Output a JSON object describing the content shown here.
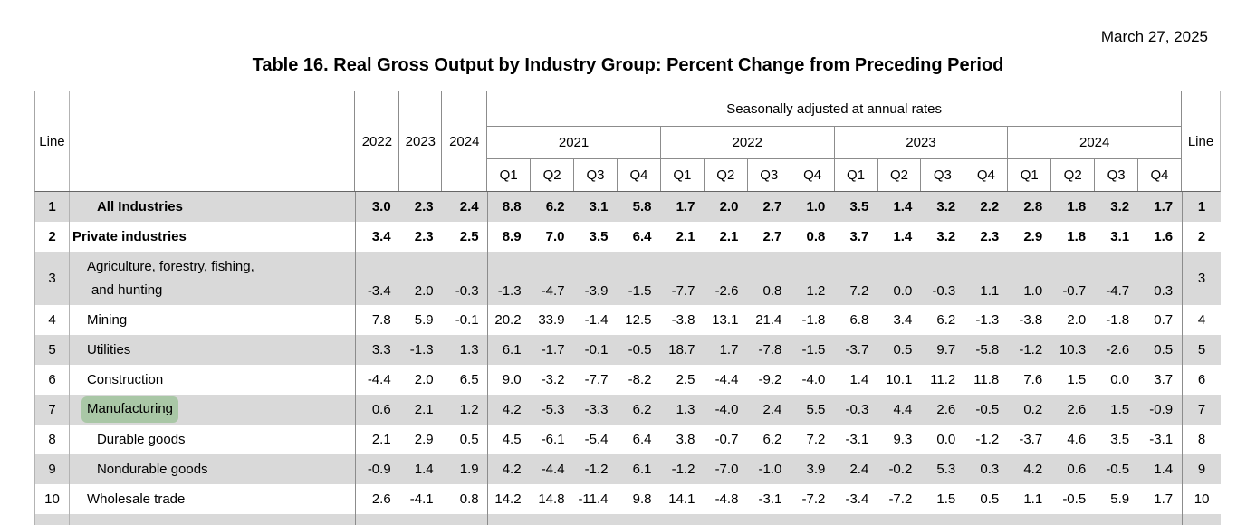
{
  "page": {
    "date": "March 27, 2025",
    "title": "Table 16. Real Gross Output by Industry Group: Percent Change from Preceding Period"
  },
  "colors": {
    "row_stripe": "#d9d9d9",
    "search_highlight": "#a9c7a6",
    "grid_line": "#8c8c8c"
  },
  "table": {
    "line_header": "Line",
    "annual_years": [
      "2022",
      "2023",
      "2024"
    ],
    "seasonal_header": "Seasonally adjusted at annual rates",
    "quarter_years": [
      "2021",
      "2022",
      "2023",
      "2024"
    ],
    "quarter_labels": [
      "Q1",
      "Q2",
      "Q3",
      "Q4"
    ],
    "rows": [
      {
        "line": "1",
        "name": "All Industries",
        "indent": 2,
        "bold": true,
        "highlight": false,
        "annual": [
          "3.0",
          "2.3",
          "2.4"
        ],
        "quarters": [
          "8.8",
          "6.2",
          "3.1",
          "5.8",
          "1.7",
          "2.0",
          "2.7",
          "1.0",
          "3.5",
          "1.4",
          "3.2",
          "2.2",
          "2.8",
          "1.8",
          "3.2",
          "1.7"
        ]
      },
      {
        "line": "2",
        "name": "Private industries",
        "indent": 0,
        "bold": true,
        "highlight": false,
        "annual": [
          "3.4",
          "2.3",
          "2.5"
        ],
        "quarters": [
          "8.9",
          "7.0",
          "3.5",
          "6.4",
          "2.1",
          "2.1",
          "2.7",
          "0.8",
          "3.7",
          "1.4",
          "3.2",
          "2.3",
          "2.9",
          "1.8",
          "3.1",
          "1.6"
        ]
      },
      {
        "line": "3",
        "name": "Agriculture, forestry, fishing, and hunting",
        "name_lines": [
          "Agriculture, forestry, fishing,",
          "and hunting"
        ],
        "indent": 1,
        "bold": false,
        "highlight": false,
        "annual": [
          "-3.4",
          "2.0",
          "-0.3"
        ],
        "quarters": [
          "-1.3",
          "-4.7",
          "-3.9",
          "-1.5",
          "-7.7",
          "-2.6",
          "0.8",
          "1.2",
          "7.2",
          "0.0",
          "-0.3",
          "1.1",
          "1.0",
          "-0.7",
          "-4.7",
          "0.3"
        ]
      },
      {
        "line": "4",
        "name": "Mining",
        "indent": 1,
        "bold": false,
        "highlight": false,
        "annual": [
          "7.8",
          "5.9",
          "-0.1"
        ],
        "quarters": [
          "20.2",
          "33.9",
          "-1.4",
          "12.5",
          "-3.8",
          "13.1",
          "21.4",
          "-1.8",
          "6.8",
          "3.4",
          "6.2",
          "-1.3",
          "-3.8",
          "2.0",
          "-1.8",
          "0.7"
        ]
      },
      {
        "line": "5",
        "name": "Utilities",
        "indent": 1,
        "bold": false,
        "highlight": false,
        "annual": [
          "3.3",
          "-1.3",
          "1.3"
        ],
        "quarters": [
          "6.1",
          "-1.7",
          "-0.1",
          "-0.5",
          "18.7",
          "1.7",
          "-7.8",
          "-1.5",
          "-3.7",
          "0.5",
          "9.7",
          "-5.8",
          "-1.2",
          "10.3",
          "-2.6",
          "0.5"
        ]
      },
      {
        "line": "6",
        "name": "Construction",
        "indent": 1,
        "bold": false,
        "highlight": false,
        "annual": [
          "-4.4",
          "2.0",
          "6.5"
        ],
        "quarters": [
          "9.0",
          "-3.2",
          "-7.7",
          "-8.2",
          "2.5",
          "-4.4",
          "-9.2",
          "-4.0",
          "1.4",
          "10.1",
          "11.2",
          "11.8",
          "7.6",
          "1.5",
          "0.0",
          "3.7"
        ]
      },
      {
        "line": "7",
        "name": "Manufacturing",
        "indent": 1,
        "bold": false,
        "highlight": true,
        "annual": [
          "0.6",
          "2.1",
          "1.2"
        ],
        "quarters": [
          "4.2",
          "-5.3",
          "-3.3",
          "6.2",
          "1.3",
          "-4.0",
          "2.4",
          "5.5",
          "-0.3",
          "4.4",
          "2.6",
          "-0.5",
          "0.2",
          "2.6",
          "1.5",
          "-0.9"
        ]
      },
      {
        "line": "8",
        "name": "Durable goods",
        "indent": 2,
        "bold": false,
        "highlight": false,
        "annual": [
          "2.1",
          "2.9",
          "0.5"
        ],
        "quarters": [
          "4.5",
          "-6.1",
          "-5.4",
          "6.4",
          "3.8",
          "-0.7",
          "6.2",
          "7.2",
          "-3.1",
          "9.3",
          "0.0",
          "-1.2",
          "-3.7",
          "4.6",
          "3.5",
          "-3.1"
        ]
      },
      {
        "line": "9",
        "name": "Nondurable goods",
        "indent": 2,
        "bold": false,
        "highlight": false,
        "annual": [
          "-0.9",
          "1.4",
          "1.9"
        ],
        "quarters": [
          "4.2",
          "-4.4",
          "-1.2",
          "6.1",
          "-1.2",
          "-7.0",
          "-1.0",
          "3.9",
          "2.4",
          "-0.2",
          "5.3",
          "0.3",
          "4.2",
          "0.6",
          "-0.5",
          "1.4"
        ]
      },
      {
        "line": "10",
        "name": "Wholesale trade",
        "indent": 1,
        "bold": false,
        "highlight": false,
        "annual": [
          "2.6",
          "-4.1",
          "0.8"
        ],
        "quarters": [
          "14.2",
          "14.8",
          "-11.4",
          "9.8",
          "14.1",
          "-4.8",
          "-3.1",
          "-7.2",
          "-3.4",
          "-7.2",
          "1.5",
          "0.5",
          "1.1",
          "-0.5",
          "5.9",
          "1.7"
        ]
      }
    ]
  }
}
